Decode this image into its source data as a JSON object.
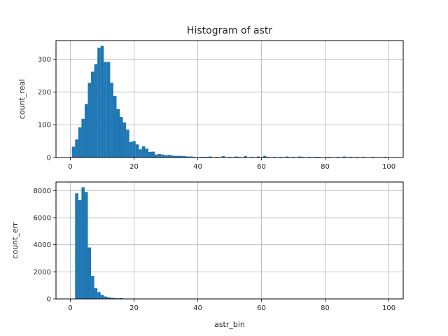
{
  "chart_data": [
    {
      "type": "bar",
      "title": "Histogram of astr",
      "xlabel": "",
      "ylabel": "count_real",
      "xlim": [
        -4.5,
        104.5
      ],
      "ylim": [
        0,
        357
      ],
      "xticks": [
        0,
        20,
        40,
        60,
        80,
        100
      ],
      "yticks": [
        0,
        100,
        200,
        300
      ],
      "grid": true,
      "color": "#1f77b4",
      "bin_width": 1,
      "bins": [
        {
          "x": 1,
          "count": 33
        },
        {
          "x": 2,
          "count": 55
        },
        {
          "x": 3,
          "count": 92
        },
        {
          "x": 4,
          "count": 118
        },
        {
          "x": 5,
          "count": 163
        },
        {
          "x": 6,
          "count": 228
        },
        {
          "x": 7,
          "count": 262
        },
        {
          "x": 8,
          "count": 285
        },
        {
          "x": 9,
          "count": 335
        },
        {
          "x": 10,
          "count": 341
        },
        {
          "x": 11,
          "count": 292
        },
        {
          "x": 12,
          "count": 292
        },
        {
          "x": 13,
          "count": 228
        },
        {
          "x": 14,
          "count": 188
        },
        {
          "x": 15,
          "count": 148
        },
        {
          "x": 16,
          "count": 124
        },
        {
          "x": 17,
          "count": 107
        },
        {
          "x": 18,
          "count": 85
        },
        {
          "x": 19,
          "count": 47
        },
        {
          "x": 20,
          "count": 50
        },
        {
          "x": 21,
          "count": 40
        },
        {
          "x": 22,
          "count": 25
        },
        {
          "x": 23,
          "count": 34
        },
        {
          "x": 24,
          "count": 27
        },
        {
          "x": 25,
          "count": 17
        },
        {
          "x": 26,
          "count": 18
        },
        {
          "x": 27,
          "count": 9
        },
        {
          "x": 28,
          "count": 11
        },
        {
          "x": 29,
          "count": 9
        },
        {
          "x": 30,
          "count": 7
        },
        {
          "x": 31,
          "count": 8
        },
        {
          "x": 32,
          "count": 6
        },
        {
          "x": 33,
          "count": 5
        },
        {
          "x": 34,
          "count": 5
        },
        {
          "x": 35,
          "count": 5
        },
        {
          "x": 36,
          "count": 4
        },
        {
          "x": 37,
          "count": 3
        },
        {
          "x": 38,
          "count": 3
        },
        {
          "x": 39,
          "count": 2
        },
        {
          "x": 41,
          "count": 2
        },
        {
          "x": 42,
          "count": 2
        },
        {
          "x": 43,
          "count": 2
        },
        {
          "x": 44,
          "count": 3
        },
        {
          "x": 46,
          "count": 2
        },
        {
          "x": 48,
          "count": 4
        },
        {
          "x": 50,
          "count": 2
        },
        {
          "x": 52,
          "count": 3
        },
        {
          "x": 53,
          "count": 2
        },
        {
          "x": 55,
          "count": 4
        },
        {
          "x": 57,
          "count": 2
        },
        {
          "x": 59,
          "count": 3
        },
        {
          "x": 61,
          "count": 5
        },
        {
          "x": 62,
          "count": 2
        },
        {
          "x": 64,
          "count": 2
        },
        {
          "x": 66,
          "count": 2
        },
        {
          "x": 68,
          "count": 3
        },
        {
          "x": 70,
          "count": 2
        },
        {
          "x": 72,
          "count": 3
        },
        {
          "x": 73,
          "count": 2
        },
        {
          "x": 75,
          "count": 2
        },
        {
          "x": 77,
          "count": 2
        },
        {
          "x": 78,
          "count": 2
        },
        {
          "x": 81,
          "count": 2
        },
        {
          "x": 84,
          "count": 2
        },
        {
          "x": 86,
          "count": 3
        },
        {
          "x": 88,
          "count": 2
        },
        {
          "x": 90,
          "count": 2
        },
        {
          "x": 92,
          "count": 2
        },
        {
          "x": 95,
          "count": 2
        },
        {
          "x": 99,
          "count": 2
        }
      ]
    },
    {
      "type": "bar",
      "title": "",
      "xlabel": "astr_bin",
      "ylabel": "count_err",
      "xlim": [
        -4.5,
        104.5
      ],
      "ylim": [
        0,
        8640
      ],
      "xticks": [
        0,
        20,
        40,
        60,
        80,
        100
      ],
      "yticks": [
        0,
        2000,
        4000,
        6000,
        8000
      ],
      "grid": true,
      "color": "#1f77b4",
      "bin_width": 1,
      "bins": [
        {
          "x": 1,
          "count": 0
        },
        {
          "x": 2,
          "count": 7800
        },
        {
          "x": 3,
          "count": 7300
        },
        {
          "x": 4,
          "count": 8250
        },
        {
          "x": 5,
          "count": 7900
        },
        {
          "x": 6,
          "count": 3800
        },
        {
          "x": 7,
          "count": 1700
        },
        {
          "x": 8,
          "count": 800
        },
        {
          "x": 9,
          "count": 500
        },
        {
          "x": 10,
          "count": 300
        },
        {
          "x": 11,
          "count": 180
        },
        {
          "x": 12,
          "count": 120
        },
        {
          "x": 13,
          "count": 80
        },
        {
          "x": 14,
          "count": 60
        },
        {
          "x": 15,
          "count": 40
        },
        {
          "x": 16,
          "count": 60
        },
        {
          "x": 17,
          "count": 15
        },
        {
          "x": 18,
          "count": 10
        },
        {
          "x": 19,
          "count": 8
        },
        {
          "x": 20,
          "count": 5
        }
      ]
    }
  ]
}
